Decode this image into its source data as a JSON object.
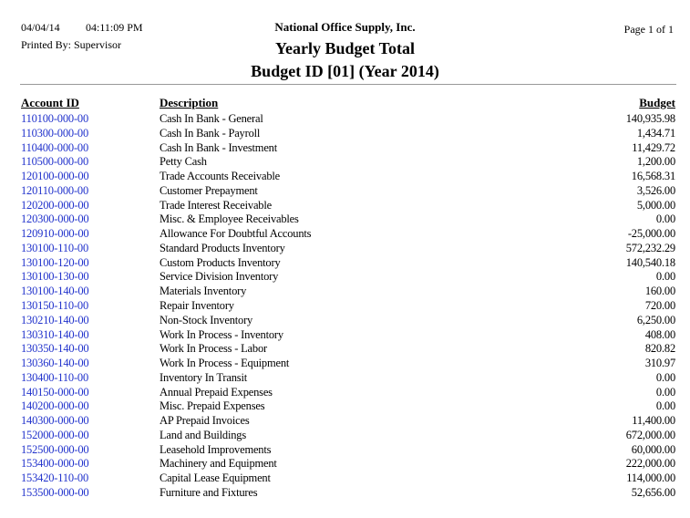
{
  "header": {
    "date": "04/04/14",
    "time": "04:11:09 PM",
    "printed_by": "Printed By: Supervisor",
    "company": "National Office Supply, Inc.",
    "title": "Yearly Budget Total",
    "subtitle": "Budget ID [01] (Year 2014)",
    "page": "Page 1 of  1"
  },
  "columns": {
    "account": "Account ID",
    "description": "Description",
    "budget": "Budget"
  },
  "rows": [
    [
      "110100-000-00",
      "Cash In Bank - General",
      "140,935.98"
    ],
    [
      "110300-000-00",
      "Cash In Bank - Payroll",
      "1,434.71"
    ],
    [
      "110400-000-00",
      "Cash In Bank - Investment",
      "11,429.72"
    ],
    [
      "110500-000-00",
      "Petty Cash",
      "1,200.00"
    ],
    [
      "120100-000-00",
      "Trade Accounts Receivable",
      "16,568.31"
    ],
    [
      "120110-000-00",
      "Customer Prepayment",
      "3,526.00"
    ],
    [
      "120200-000-00",
      "Trade Interest Receivable",
      "5,000.00"
    ],
    [
      "120300-000-00",
      "Misc. & Employee Receivables",
      "0.00"
    ],
    [
      "120910-000-00",
      "Allowance For Doubtful Accounts",
      "-25,000.00"
    ],
    [
      "130100-110-00",
      "Standard Products Inventory",
      "572,232.29"
    ],
    [
      "130100-120-00",
      "Custom Products Inventory",
      "140,540.18"
    ],
    [
      "130100-130-00",
      "Service Division Inventory",
      "0.00"
    ],
    [
      "130100-140-00",
      "Materials Inventory",
      "160.00"
    ],
    [
      "130150-110-00",
      "Repair Inventory",
      "720.00"
    ],
    [
      "130210-140-00",
      "Non-Stock Inventory",
      "6,250.00"
    ],
    [
      "130310-140-00",
      "Work In Process - Inventory",
      "408.00"
    ],
    [
      "130350-140-00",
      "Work In Process - Labor",
      "820.82"
    ],
    [
      "130360-140-00",
      "Work In Process - Equipment",
      "310.97"
    ],
    [
      "130400-110-00",
      "Inventory In Transit",
      "0.00"
    ],
    [
      "140150-000-00",
      "Annual Prepaid Expenses",
      "0.00"
    ],
    [
      "140200-000-00",
      "Misc. Prepaid Expenses",
      "0.00"
    ],
    [
      "140300-000-00",
      "AP Prepaid Invoices",
      "11,400.00"
    ],
    [
      "152000-000-00",
      "Land and Buildings",
      "672,000.00"
    ],
    [
      "152500-000-00",
      "Leasehold Improvements",
      "60,000.00"
    ],
    [
      "153400-000-00",
      "Machinery and Equipment",
      "222,000.00"
    ],
    [
      "153420-110-00",
      "Capital Lease Equipment",
      "114,000.00"
    ],
    [
      "153500-000-00",
      "Furniture and Fixtures",
      "52,656.00"
    ]
  ]
}
